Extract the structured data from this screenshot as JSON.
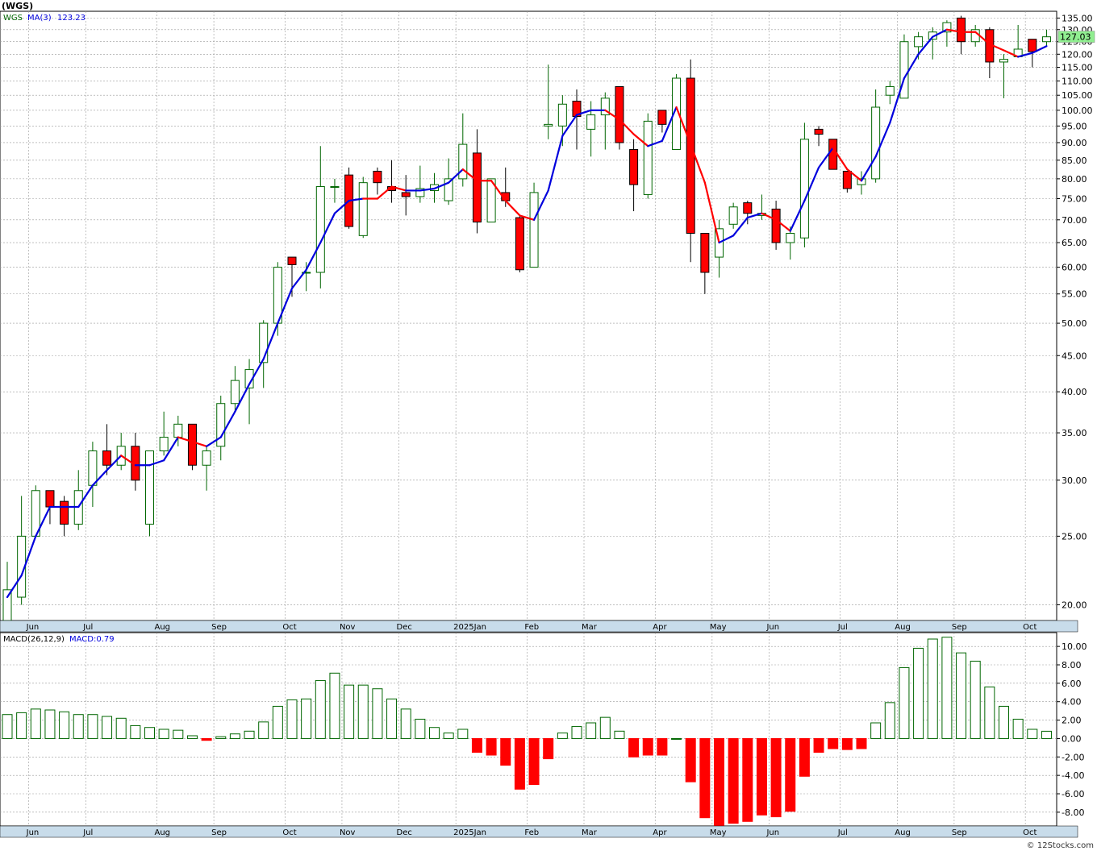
{
  "header": {
    "symbol": "(WGS)"
  },
  "legend": {
    "ticker": "WGS",
    "ma_label": "MA(3)",
    "ma_value": "123.23",
    "macd_params": "MACD(26,12,9)",
    "macd_value": "MACD:0.79"
  },
  "last_price_label": "127.03",
  "watermark": "© 12Stocks.com",
  "colors": {
    "up": "#006600",
    "down": "#ff0000",
    "ma_up": "#0000dd",
    "ma_down": "#ff0000",
    "axis_band": "#c8dcea",
    "grid": "#999999"
  },
  "chart_data": [
    {
      "type": "candlestick",
      "ylim": [
        19,
        138
      ],
      "y_scale": "log",
      "y_ticks": [
        "20.00",
        "25.00",
        "30.00",
        "35.00",
        "40.00",
        "45.00",
        "50.00",
        "55.00",
        "60.00",
        "65.00",
        "70.00",
        "75.00",
        "80.00",
        "85.00",
        "90.00",
        "95.00",
        "100.00",
        "105.00",
        "110.00",
        "115.00",
        "120.00",
        "125.00",
        "130.00",
        "135.00"
      ],
      "x_ticks": [
        {
          "label": "Jun",
          "index": 1
        },
        {
          "label": "Jul",
          "index": 5
        },
        {
          "label": "Aug",
          "index": 10
        },
        {
          "label": "Sep",
          "index": 14
        },
        {
          "label": "Oct",
          "index": 19
        },
        {
          "label": "Nov",
          "index": 23
        },
        {
          "label": "Dec",
          "index": 27
        },
        {
          "label": "2025Jan",
          "index": 31
        },
        {
          "label": "Feb",
          "index": 36
        },
        {
          "label": "Mar",
          "index": 40
        },
        {
          "label": "Apr",
          "index": 45
        },
        {
          "label": "May",
          "index": 49
        },
        {
          "label": "Jun",
          "index": 53
        },
        {
          "label": "Jul",
          "index": 58
        },
        {
          "label": "Aug",
          "index": 62
        },
        {
          "label": "Sep",
          "index": 66
        },
        {
          "label": "Oct",
          "index": 71
        }
      ],
      "grid": true,
      "candles": [
        [
          19.0,
          21.0,
          23.0,
          19.0
        ],
        [
          20.5,
          25.0,
          28.5,
          20.0
        ],
        [
          25.0,
          29.0,
          29.5,
          25.0
        ],
        [
          29.0,
          27.5,
          29.0,
          26.0
        ],
        [
          28.0,
          26.0,
          28.5,
          25.0
        ],
        [
          26.0,
          29.0,
          31.0,
          25.5
        ],
        [
          29.5,
          33.0,
          34.0,
          27.5
        ],
        [
          33.0,
          31.5,
          36.0,
          30.5
        ],
        [
          31.5,
          33.5,
          35.0,
          31.0
        ],
        [
          33.5,
          30.0,
          35.0,
          29.0
        ],
        [
          26.0,
          33.0,
          33.0,
          25.0
        ],
        [
          33.0,
          34.5,
          37.5,
          32.5
        ],
        [
          34.5,
          36.0,
          37.0,
          33.5
        ],
        [
          36.0,
          31.5,
          36.0,
          31.0
        ],
        [
          31.5,
          33.0,
          33.5,
          29.0
        ],
        [
          33.5,
          38.5,
          39.5,
          32.0
        ],
        [
          38.5,
          41.5,
          43.5,
          37.5
        ],
        [
          40.5,
          43.0,
          44.5,
          36.0
        ],
        [
          44.0,
          50.0,
          50.5,
          40.5
        ],
        [
          50.0,
          60.0,
          61.0,
          48.0
        ],
        [
          62.0,
          60.5,
          62.0,
          54.5
        ],
        [
          59.0,
          59.0,
          61.0,
          55.5
        ],
        [
          59.0,
          78.0,
          89.0,
          56.0
        ],
        [
          78.0,
          78.0,
          80.0,
          74.0
        ],
        [
          81.0,
          68.5,
          83.0,
          68.0
        ],
        [
          66.5,
          79.0,
          80.5,
          66.0
        ],
        [
          82.0,
          79.0,
          83.0,
          76.0
        ],
        [
          78.0,
          77.0,
          85.0,
          74.0
        ],
        [
          76.5,
          75.5,
          81.0,
          71.0
        ],
        [
          75.5,
          77.5,
          83.5,
          74.0
        ],
        [
          77.0,
          78.5,
          81.5,
          74.0
        ],
        [
          74.5,
          80.0,
          85.5,
          73.5
        ],
        [
          80.0,
          89.5,
          99.0,
          78.0
        ],
        [
          87.0,
          69.5,
          94.0,
          67.0
        ],
        [
          69.5,
          80.0,
          80.0,
          69.5
        ],
        [
          76.5,
          74.5,
          83.0,
          73.0
        ],
        [
          70.5,
          59.5,
          71.0,
          59.0
        ],
        [
          60.0,
          76.5,
          79.0,
          60.0
        ],
        [
          95.0,
          95.5,
          116.0,
          91.0
        ],
        [
          95.0,
          102.0,
          105.0,
          89.0
        ],
        [
          103.0,
          98.0,
          107.0,
          88.0
        ],
        [
          94.0,
          98.5,
          103.0,
          86.0
        ],
        [
          98.5,
          104.0,
          106.0,
          88.0
        ],
        [
          108.0,
          90.0,
          108.0,
          88.0
        ],
        [
          88.0,
          78.5,
          91.0,
          72.0
        ],
        [
          76.0,
          96.5,
          99.0,
          75.0
        ],
        [
          100.0,
          95.5,
          100.0,
          93.0
        ],
        [
          88.0,
          111.0,
          112.5,
          88.0
        ],
        [
          111.0,
          67.0,
          118.0,
          61.0
        ],
        [
          67.0,
          59.0,
          67.0,
          55.0
        ],
        [
          62.0,
          68.0,
          70.0,
          58.0
        ],
        [
          69.0,
          73.0,
          74.0,
          68.0
        ],
        [
          74.0,
          71.5,
          74.5,
          69.0
        ],
        [
          71.0,
          71.5,
          76.0,
          70.0
        ],
        [
          72.5,
          65.0,
          74.5,
          63.5
        ],
        [
          65.0,
          67.0,
          68.5,
          61.5
        ],
        [
          66.0,
          91.0,
          96.0,
          64.0
        ],
        [
          94.0,
          92.5,
          95.0,
          89.0
        ],
        [
          91.0,
          82.5,
          91.0,
          82.5
        ],
        [
          82.0,
          77.5,
          82.0,
          76.5
        ],
        [
          78.5,
          80.0,
          82.0,
          76.0
        ],
        [
          80.0,
          101.0,
          107.0,
          79.0
        ],
        [
          105.0,
          108.0,
          110.0,
          102.0
        ],
        [
          104.0,
          125.0,
          128.0,
          104.0
        ],
        [
          123.0,
          127.0,
          129.0,
          118.0
        ],
        [
          126.0,
          129.0,
          131.0,
          118.0
        ],
        [
          129.0,
          133.0,
          134.0,
          123.0
        ],
        [
          135.0,
          125.0,
          136.0,
          120.0
        ],
        [
          125.0,
          130.0,
          132.0,
          123.0
        ],
        [
          130.0,
          117.0,
          131.0,
          111.0
        ],
        [
          117.0,
          118.0,
          120.0,
          104.0
        ],
        [
          119.0,
          122.0,
          132.0,
          119.0
        ],
        [
          126.0,
          121.0,
          126.0,
          115.0
        ],
        [
          125.0,
          127.0,
          130.0,
          123.0
        ]
      ],
      "ma3": [
        20.5,
        22.0,
        25.0,
        27.5,
        27.5,
        27.5,
        29.5,
        31.0,
        32.5,
        31.5,
        31.5,
        32.0,
        34.5,
        34.0,
        33.5,
        34.5,
        37.5,
        41.0,
        44.5,
        50.0,
        56.0,
        59.5,
        65.0,
        71.5,
        74.5,
        75.0,
        75.0,
        78.0,
        77.0,
        77.0,
        77.5,
        79.0,
        82.5,
        79.5,
        79.5,
        74.5,
        71.0,
        70.0,
        77.0,
        92.0,
        98.5,
        100.0,
        100.0,
        97.0,
        92.5,
        89.0,
        90.5,
        101.0,
        89.5,
        79.0,
        65.0,
        66.5,
        70.5,
        71.5,
        70.0,
        67.5,
        74.5,
        83.0,
        88.5,
        82.5,
        79.5,
        86.0,
        96.0,
        111.0,
        120.0,
        127.0,
        130.0,
        129.0,
        129.0,
        124.0,
        121.5,
        119.0,
        120.5,
        123.2
      ],
      "ma3_up": [
        true,
        true,
        true,
        true,
        true,
        true,
        true,
        true,
        true,
        false,
        true,
        true,
        true,
        false,
        false,
        true,
        true,
        true,
        true,
        true,
        true,
        true,
        true,
        true,
        true,
        true,
        false,
        false,
        false,
        true,
        true,
        true,
        true,
        false,
        false,
        false,
        false,
        false,
        true,
        true,
        true,
        true,
        true,
        false,
        false,
        false,
        true,
        true,
        false,
        false,
        false,
        true,
        true,
        true,
        false,
        false,
        true,
        true,
        true,
        false,
        false,
        true,
        true,
        true,
        true,
        true,
        true,
        false,
        false,
        false,
        false,
        false,
        true,
        true
      ]
    },
    {
      "type": "bar",
      "title": "MACD(26,12,9)",
      "ylim": [
        -9.5,
        11.5
      ],
      "y_ticks": [
        "-8.00",
        "-6.00",
        "-4.00",
        "-2.00",
        "0.00",
        "2.00",
        "4.00",
        "6.00",
        "8.00",
        "10.00"
      ],
      "values": [
        2.6,
        2.8,
        3.2,
        3.1,
        2.9,
        2.6,
        2.6,
        2.4,
        2.2,
        1.4,
        1.2,
        1.0,
        0.9,
        0.3,
        -0.2,
        0.2,
        0.5,
        0.8,
        1.8,
        3.5,
        4.2,
        4.3,
        6.3,
        7.1,
        5.8,
        5.8,
        5.4,
        4.3,
        3.2,
        2.1,
        1.2,
        0.6,
        1.0,
        -1.5,
        -1.8,
        -2.9,
        -5.5,
        -5.0,
        -2.2,
        0.6,
        1.3,
        1.7,
        2.3,
        0.8,
        -2.0,
        -1.8,
        -1.8,
        0.0,
        -4.7,
        -8.6,
        -9.5,
        -9.2,
        -9.0,
        -8.3,
        -8.5,
        -7.9,
        -4.1,
        -1.5,
        -1.1,
        -1.2,
        -1.1,
        1.7,
        3.9,
        7.7,
        9.8,
        10.8,
        11.0,
        9.3,
        8.4,
        5.6,
        3.5,
        2.1,
        1.0,
        0.79
      ]
    }
  ]
}
